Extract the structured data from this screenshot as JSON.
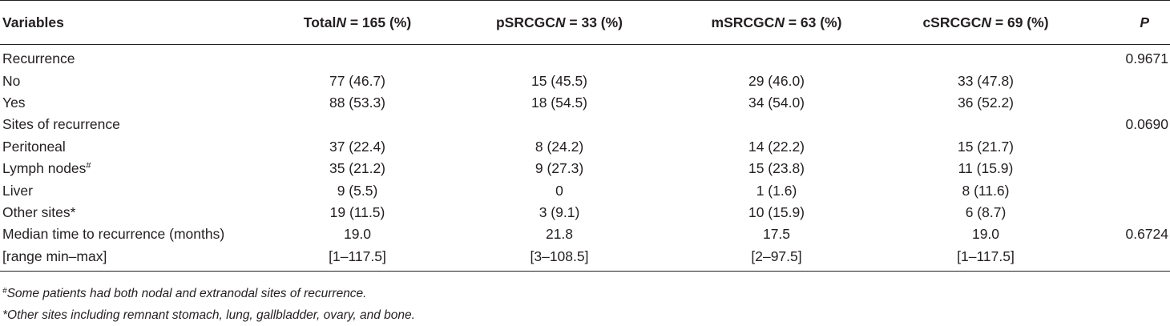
{
  "table": {
    "headers": {
      "variables": "Variables",
      "total_prefix": "Total",
      "total_n": "N",
      "total_suffix": " = 165 (%)",
      "psrcgc_prefix": "pSRCGC",
      "psrcgc_n": "N",
      "psrcgc_suffix": " = 33 (%)",
      "msrcgc_prefix": "mSRCGC",
      "msrcgc_n": "N",
      "msrcgc_suffix": " = 63 (%)",
      "csrcgc_prefix": "cSRCGC",
      "csrcgc_n": "N",
      "csrcgc_suffix": " = 69 (%)",
      "p": "P"
    },
    "rows": [
      {
        "variable": "Recurrence",
        "sup": "",
        "total": "",
        "psrcgc": "",
        "msrcgc": "",
        "csrcgc": "",
        "p": "0.9671"
      },
      {
        "variable": "No",
        "sup": "",
        "total": "77 (46.7)",
        "psrcgc": "15 (45.5)",
        "msrcgc": "29 (46.0)",
        "csrcgc": "33 (47.8)",
        "p": ""
      },
      {
        "variable": "Yes",
        "sup": "",
        "total": "88 (53.3)",
        "psrcgc": "18 (54.5)",
        "msrcgc": "34 (54.0)",
        "csrcgc": "36 (52.2)",
        "p": ""
      },
      {
        "variable": "Sites of recurrence",
        "sup": "",
        "total": "",
        "psrcgc": "",
        "msrcgc": "",
        "csrcgc": "",
        "p": "0.0690"
      },
      {
        "variable": "Peritoneal",
        "sup": "",
        "total": "37 (22.4)",
        "psrcgc": "8 (24.2)",
        "msrcgc": "14 (22.2)",
        "csrcgc": "15 (21.7)",
        "p": ""
      },
      {
        "variable": "Lymph nodes",
        "sup": "#",
        "total": "35 (21.2)",
        "psrcgc": "9 (27.3)",
        "msrcgc": "15 (23.8)",
        "csrcgc": "11 (15.9)",
        "p": ""
      },
      {
        "variable": "Liver",
        "sup": "",
        "total": "9 (5.5)",
        "psrcgc": "0",
        "msrcgc": "1 (1.6)",
        "csrcgc": "8 (11.6)",
        "p": ""
      },
      {
        "variable": "Other sites*",
        "sup": "",
        "total": "19 (11.5)",
        "psrcgc": "3 (9.1)",
        "msrcgc": "10 (15.9)",
        "csrcgc": "6 (8.7)",
        "p": ""
      },
      {
        "variable": "Median time to recurrence (months)",
        "sup": "",
        "total": "19.0",
        "psrcgc": "21.8",
        "msrcgc": "17.5",
        "csrcgc": "19.0",
        "p": "0.6724"
      },
      {
        "variable": "[range min–max]",
        "sup": "",
        "total": "[1–117.5]",
        "psrcgc": "[3–108.5]",
        "msrcgc": "[2–97.5]",
        "csrcgc": "[1–117.5]",
        "p": ""
      }
    ]
  },
  "footnotes": {
    "note1_symbol": "#",
    "note1_text": "Some patients had both nodal and extranodal sites of recurrence.",
    "note2_text": "*Other sites including remnant stomach, lung, gallbladder, ovary, and bone."
  }
}
